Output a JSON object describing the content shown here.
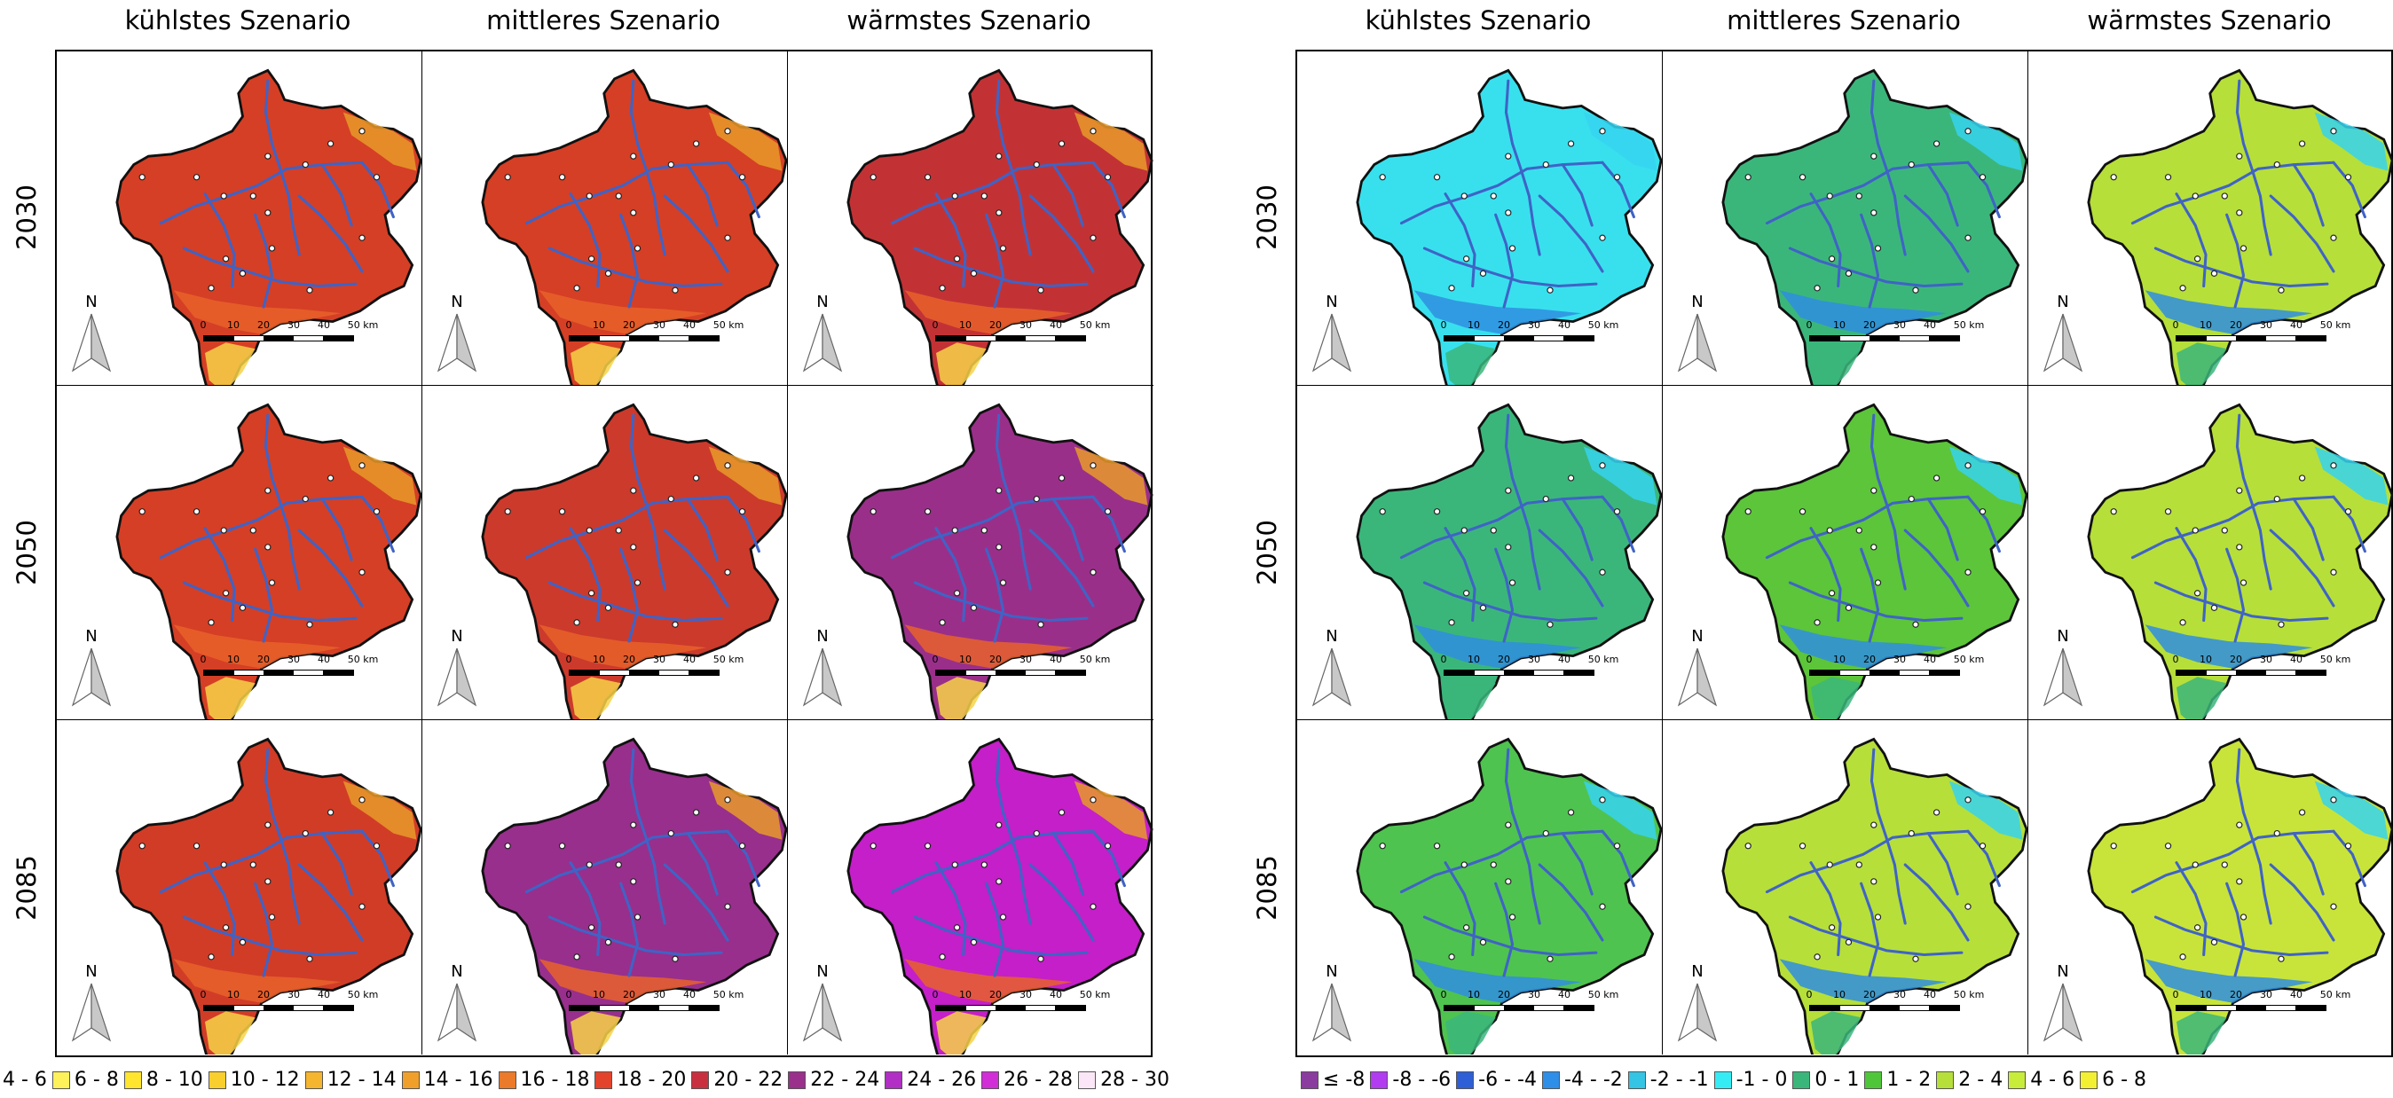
{
  "columns": [
    "kühlstes Szenario",
    "mittleres Szenario",
    "wärmstes Szenario"
  ],
  "rows": [
    "2030",
    "2050",
    "2085"
  ],
  "north_label": "N",
  "scale_labels": [
    "0",
    "10",
    "20",
    "30",
    "40",
    "50 km"
  ],
  "map_left": {
    "cells": [
      [
        "#d53f25",
        "#d53f25",
        "#c23235"
      ],
      [
        "#d53f25",
        "#cc3a2c",
        "#9a2f8a"
      ],
      [
        "#d13c27",
        "#982f8c",
        "#c41fc8"
      ]
    ],
    "highlight": [
      "#e89a2a",
      "#e8622a",
      "#f7d248"
    ]
  },
  "map_right": {
    "cells": [
      [
        "#38e0ee",
        "#3bb67b",
        "#b6df3a"
      ],
      [
        "#3bb67b",
        "#5cc53a",
        "#b6df3a"
      ],
      [
        "#4fc34f",
        "#b6df3a",
        "#c8e43a"
      ]
    ],
    "highlight": [
      "#36d4f0",
      "#2f8ee0",
      "#3bb67b"
    ]
  },
  "legend_left": [
    {
      "label": "4 - 6",
      "color": "#fff68f"
    },
    {
      "label": "6 - 8",
      "color": "#fff15a"
    },
    {
      "label": "8 - 10",
      "color": "#ffe52e"
    },
    {
      "label": "10 - 12",
      "color": "#f9cf2e"
    },
    {
      "label": "12 - 14",
      "color": "#f5b52e"
    },
    {
      "label": "14 - 16",
      "color": "#f0a02a"
    },
    {
      "label": "16 - 18",
      "color": "#eb7a2a"
    },
    {
      "label": "18 - 20",
      "color": "#e3432a"
    },
    {
      "label": "20 - 22",
      "color": "#c9303f"
    },
    {
      "label": "22 - 24",
      "color": "#9a2f8c"
    },
    {
      "label": "24 - 26",
      "color": "#b12fc4"
    },
    {
      "label": "26 - 28",
      "color": "#d22ed8"
    },
    {
      "label": "28 - 30",
      "color": "#fbe6f7"
    }
  ],
  "legend_right": [
    {
      "label": "≤ -8",
      "color": "#8b3c9f"
    },
    {
      "label": "-8 - -6",
      "color": "#b23cf0"
    },
    {
      "label": "-6 - -4",
      "color": "#2f5fd6"
    },
    {
      "label": "-4 - -2",
      "color": "#2f8ee8"
    },
    {
      "label": "-2 - -1",
      "color": "#34c4e4"
    },
    {
      "label": "-1 - 0",
      "color": "#36ecf4"
    },
    {
      "label": "0 - 1",
      "color": "#3bb67b"
    },
    {
      "label": "1 - 2",
      "color": "#4fc63a"
    },
    {
      "label": "2 - 4",
      "color": "#b6df3a"
    },
    {
      "label": "4 - 6",
      "color": "#c8ec3a"
    },
    {
      "label": "6 - 8",
      "color": "#f3f032"
    }
  ]
}
